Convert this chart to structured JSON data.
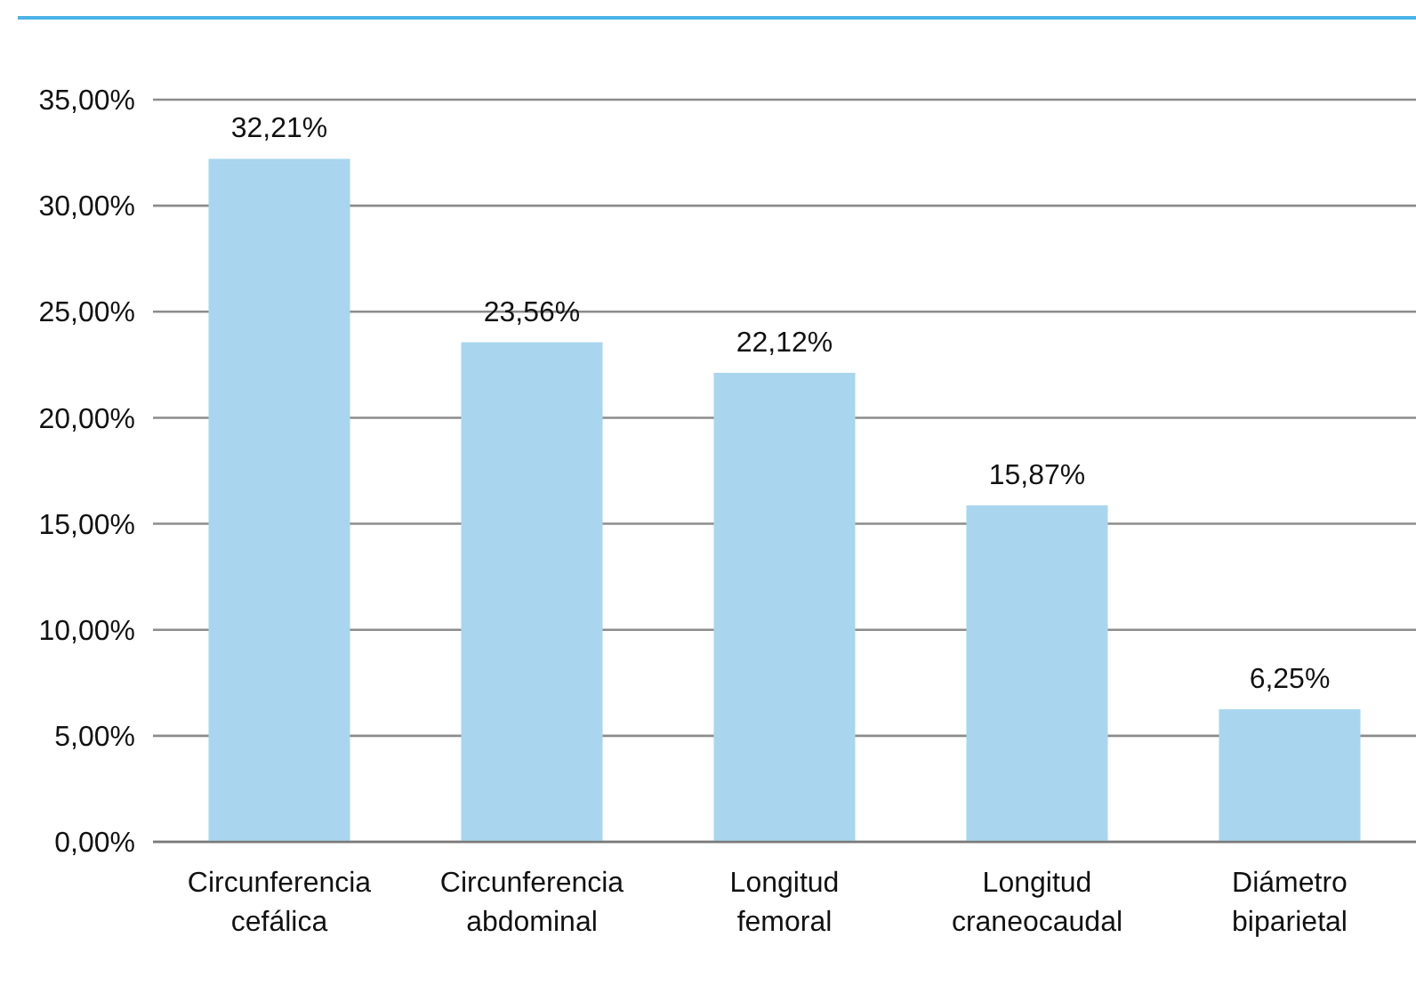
{
  "chart_data": {
    "type": "bar",
    "categories": [
      "Circunferencia cefálica",
      "Circunferencia abdominal",
      "Longitud femoral",
      "Longitud craneocaudal",
      "Diámetro biparietal"
    ],
    "values": [
      32.21,
      23.56,
      22.12,
      15.87,
      6.25
    ],
    "value_labels": [
      "32,21%",
      "23,56%",
      "22,12%",
      "15,87%",
      "6,25%"
    ],
    "color": "#a9d6ee",
    "ylim": [
      0,
      35
    ],
    "yticks": [
      {
        "value": 0,
        "label": "0,00%"
      },
      {
        "value": 5,
        "label": "5,00%"
      },
      {
        "value": 10,
        "label": "10,00%"
      },
      {
        "value": 15,
        "label": "15,00%"
      },
      {
        "value": 20,
        "label": "20,00%"
      },
      {
        "value": 25,
        "label": "25,00%"
      },
      {
        "value": 30,
        "label": "30,00%"
      },
      {
        "value": 35,
        "label": "35,00%"
      }
    ],
    "grid": "y"
  }
}
